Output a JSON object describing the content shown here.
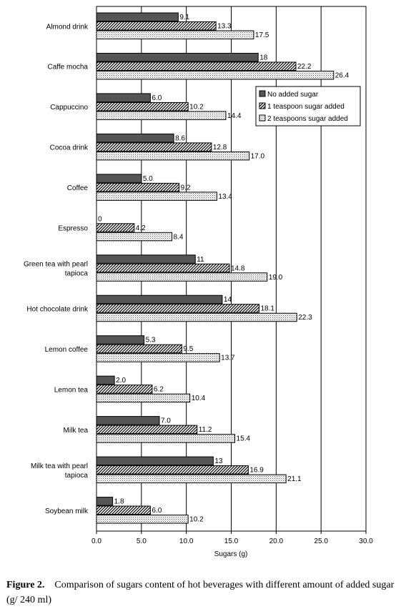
{
  "chart_data": {
    "type": "bar",
    "orientation": "horizontal",
    "categories": [
      "Almond drink",
      "Caffe mocha",
      "Cappuccino",
      "Cocoa drink",
      "Coffee",
      "Espresso",
      "Green tea with pearl tapioca",
      "Hot chocolate drink",
      "Lemon coffee",
      "Lemon tea",
      "Milk tea",
      "Milk tea with pearl tapioca",
      "Soybean milk"
    ],
    "category_lines": [
      [
        "Almond drink"
      ],
      [
        "Caffe mocha"
      ],
      [
        "Cappuccino"
      ],
      [
        "Cocoa drink"
      ],
      [
        "Coffee"
      ],
      [
        "Espresso"
      ],
      [
        "Green tea with pearl",
        "tapioca"
      ],
      [
        "Hot chocolate drink"
      ],
      [
        "Lemon coffee"
      ],
      [
        "Lemon tea"
      ],
      [
        "Milk tea"
      ],
      [
        "Milk tea with pearl",
        "tapioca"
      ],
      [
        "Soybean milk"
      ]
    ],
    "series": [
      {
        "name": "No added sugar",
        "pattern": "solid-dark",
        "values": [
          9.1,
          18,
          6.0,
          8.6,
          5.0,
          0,
          11,
          14,
          5.3,
          2.0,
          7.0,
          13,
          1.8
        ],
        "labels": [
          "9.1",
          "18",
          "6.0",
          "8.6",
          "5.0",
          "0",
          "11",
          "14",
          "5.3",
          "2.0",
          "7.0",
          "13",
          "1.8"
        ]
      },
      {
        "name": "1 teaspoon sugar added",
        "pattern": "diagonal-hatch",
        "values": [
          13.3,
          22.2,
          10.2,
          12.8,
          9.2,
          4.2,
          14.8,
          18.1,
          9.5,
          6.2,
          11.2,
          16.9,
          6.0
        ],
        "labels": [
          "13.3",
          "22.2",
          "10.2",
          "12.8",
          "9.2",
          "4.2",
          "14.8",
          "18.1",
          "9.5",
          "6.2",
          "11.2",
          "16.9",
          "6.0"
        ]
      },
      {
        "name": "2 teaspoons sugar added",
        "pattern": "dotted",
        "values": [
          17.5,
          26.4,
          14.4,
          17.0,
          13.4,
          8.4,
          19.0,
          22.3,
          13.7,
          10.4,
          15.4,
          21.1,
          10.2
        ],
        "labels": [
          "17.5",
          "26.4",
          "14.4",
          "17.0",
          "13.4",
          "8.4",
          "19.0",
          "22.3",
          "13.7",
          "10.4",
          "15.4",
          "21.1",
          "10.2"
        ]
      }
    ],
    "xlabel": "Sugars (g)",
    "ylabel": "",
    "xlim": [
      0,
      30
    ],
    "xticks": [
      "0.0",
      "5.0",
      "10.0",
      "15.0",
      "20.0",
      "25.0",
      "30.0"
    ],
    "grid": "vertical",
    "legend_position": "upper-right"
  },
  "caption": {
    "label": "Figure 2.",
    "text": "Comparison of sugars content of hot beverages with different amount of added sugar (g/ 240 ml)"
  }
}
